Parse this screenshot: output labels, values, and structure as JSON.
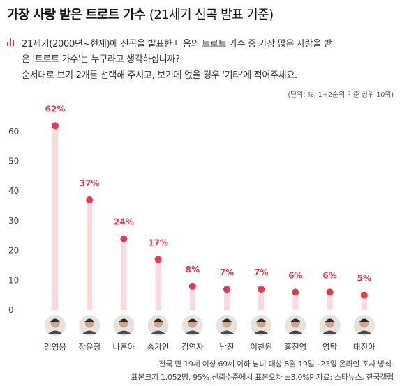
{
  "header": {
    "title": "가장 사랑 받은 트로트 가수",
    "subtitle": "(21세기 신곡 발표 기준)"
  },
  "question": {
    "line1": "21세기(2000년~현재)에 신곡을 발표한 다음의 트로트 가수 중 가장 많은 사랑을 받",
    "line2": "은 '트로트 가수'는 누구라고 생각하십니까?",
    "line3": "순서대로 보기 2개를 선택해 주시고, 보기에 없을 경우 '기타'에 적어주세요."
  },
  "unit_note": "(단위: %, 1+2순위 기준 상위 10위)",
  "footnote": {
    "line1": "전국 만 19세 이상 69세 이하 남녀 대상 8월 19일~23일 온라인 조사 방식.",
    "line2": "표본크기 1,052명. 95% 신뢰수준에서 표본오차 ±3.0%P 자료: 스타뉴스, 한국갤럽"
  },
  "colors": {
    "accent": "#e23b4e",
    "bar": "#fbdadd",
    "grid": "#dddddd"
  },
  "chart_data": {
    "type": "bar",
    "categories": [
      "임영웅",
      "장윤정",
      "나훈아",
      "송가인",
      "김연자",
      "남진",
      "이찬원",
      "홍진영",
      "영탁",
      "태진아"
    ],
    "values": [
      62,
      37,
      24,
      17,
      8,
      7,
      7,
      6,
      6,
      5
    ],
    "value_labels": [
      "62%",
      "37%",
      "24%",
      "17%",
      "8%",
      "7%",
      "7%",
      "6%",
      "6%",
      "5%"
    ],
    "y_ticks": [
      0,
      10,
      20,
      30,
      40,
      50,
      60
    ],
    "ylim": [
      0,
      65
    ],
    "grid": true,
    "marker": "dot"
  }
}
